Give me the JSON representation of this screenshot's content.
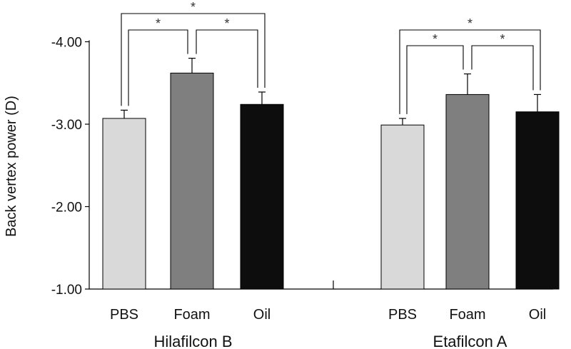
{
  "chart_data": {
    "type": "bar",
    "ylabel": "Back vertex power (D)",
    "ylim": [
      -1.0,
      -4.0
    ],
    "yticks": [
      {
        "value": -1.0,
        "label": "-1.00"
      },
      {
        "value": -2.0,
        "label": "-2.00"
      },
      {
        "value": -3.0,
        "label": "-3.00"
      },
      {
        "value": -4.0,
        "label": "-4.00"
      }
    ],
    "groups": [
      {
        "name": "Hilafilcon B",
        "categories": [
          "PBS",
          "Foam",
          "Oil"
        ],
        "values": [
          -3.07,
          -3.62,
          -3.24
        ],
        "errors": [
          0.1,
          0.18,
          0.15
        ],
        "significance": [
          {
            "from": 0,
            "to": 1,
            "label": "*"
          },
          {
            "from": 1,
            "to": 2,
            "label": "*"
          },
          {
            "from": 0,
            "to": 2,
            "label": "*"
          }
        ]
      },
      {
        "name": "Etafilcon A",
        "categories": [
          "PBS",
          "Foam",
          "Oil"
        ],
        "values": [
          -2.99,
          -3.36,
          -3.15
        ],
        "errors": [
          0.08,
          0.25,
          0.21
        ],
        "significance": [
          {
            "from": 0,
            "to": 1,
            "label": "*"
          },
          {
            "from": 1,
            "to": 2,
            "label": "*"
          },
          {
            "from": 0,
            "to": 2,
            "label": "*"
          }
        ]
      }
    ],
    "series_colors": {
      "PBS": "#d9d9d9",
      "Foam": "#7f7f7f",
      "Oil": "#0d0d0d"
    }
  }
}
